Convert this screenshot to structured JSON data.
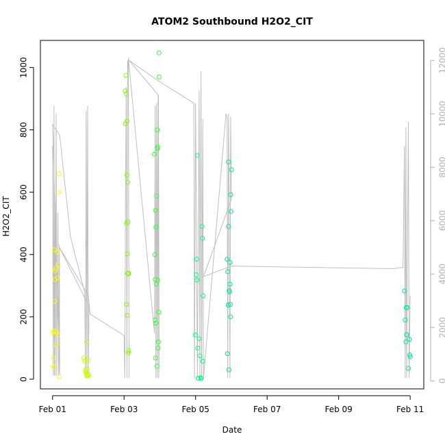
{
  "chart_data": {
    "type": "scatter",
    "title": "ATOM2 Southbound H2O2_CIT",
    "xlabel": "Date",
    "ylabel": "H2O2_CIT",
    "x_unit": "days",
    "x_ticks": [
      {
        "label": "Feb 01",
        "value": 0
      },
      {
        "label": "Feb 03",
        "value": 2
      },
      {
        "label": "Feb 05",
        "value": 4
      },
      {
        "label": "Feb 07",
        "value": 6
      },
      {
        "label": "Feb 09",
        "value": 8
      },
      {
        "label": "Feb 11",
        "value": 10
      }
    ],
    "xlim": [
      -0.34,
      10.38
    ],
    "ylim": [
      -31,
      1087
    ],
    "y_ticks": [
      0,
      200,
      400,
      600,
      800,
      1000
    ],
    "right_axis": {
      "ticks": [
        0,
        2000,
        4000,
        6000,
        8000,
        10000,
        12000
      ],
      "range": [
        -300,
        12750
      ],
      "color": "#b0b0b0"
    },
    "line_color": "#bebebe",
    "point_colors": [
      "#ffff00",
      "#ccff00",
      "#80ff00",
      "#33ff33",
      "#00ff80",
      "#00e6a0"
    ],
    "series": [
      {
        "values": [
          [
            0.0,
            150
          ],
          [
            0.02,
            42
          ],
          [
            0.03,
            68
          ],
          [
            0.04,
            38
          ],
          [
            0.05,
            155
          ],
          [
            0.05,
            415
          ],
          [
            0.06,
            250
          ],
          [
            0.07,
            320
          ],
          [
            0.08,
            348
          ],
          [
            0.09,
            355
          ],
          [
            0.1,
            110
          ],
          [
            0.12,
            150
          ],
          [
            0.13,
            408
          ],
          [
            0.14,
            325
          ],
          [
            0.15,
            143
          ],
          [
            0.16,
            368
          ],
          [
            0.17,
            600
          ],
          [
            0.18,
            660
          ],
          [
            0.19,
            8
          ]
        ]
      },
      {
        "values": [
          [
            0.88,
            68
          ],
          [
            0.9,
            58
          ],
          [
            0.92,
            30
          ],
          [
            0.93,
            25
          ],
          [
            0.94,
            15
          ],
          [
            0.95,
            120
          ],
          [
            0.96,
            32
          ],
          [
            0.97,
            12
          ],
          [
            0.98,
            10
          ],
          [
            0.99,
            18
          ],
          [
            1.0,
            62
          ],
          [
            1.01,
            12
          ]
        ]
      },
      {
        "values": [
          [
            2.03,
            925
          ],
          [
            2.04,
            820
          ],
          [
            2.05,
            975
          ],
          [
            2.06,
            915
          ],
          [
            2.07,
            240
          ],
          [
            2.07,
            500
          ],
          [
            2.08,
            655
          ],
          [
            2.08,
            828
          ],
          [
            2.09,
            402
          ],
          [
            2.09,
            205
          ],
          [
            2.1,
            632
          ],
          [
            2.1,
            340
          ],
          [
            2.11,
            505
          ],
          [
            2.12,
            338
          ],
          [
            2.12,
            85
          ],
          [
            2.13,
            92
          ],
          [
            2.13,
            340
          ]
        ]
      },
      {
        "values": [
          [
            2.85,
            722
          ],
          [
            2.86,
            400
          ],
          [
            2.87,
            190
          ],
          [
            2.87,
            320
          ],
          [
            2.88,
            542
          ],
          [
            2.88,
            68
          ],
          [
            2.89,
            488
          ],
          [
            2.89,
            180
          ],
          [
            2.9,
            305
          ],
          [
            2.91,
            588
          ],
          [
            2.92,
            42
          ],
          [
            2.93,
            800
          ],
          [
            2.93,
            740
          ],
          [
            2.94,
            745
          ],
          [
            2.94,
            318
          ],
          [
            2.95,
            100
          ],
          [
            2.96,
            120
          ],
          [
            2.97,
            215
          ],
          [
            2.98,
            1047
          ],
          [
            2.98,
            970
          ]
        ]
      },
      {
        "values": [
          [
            3.99,
            142
          ],
          [
            4.02,
            335
          ],
          [
            4.03,
            385
          ],
          [
            4.04,
            318
          ],
          [
            4.05,
            718
          ],
          [
            4.06,
            100
          ],
          [
            4.07,
            3
          ],
          [
            4.1,
            130
          ],
          [
            4.12,
            75
          ],
          [
            4.14,
            5
          ],
          [
            4.15,
            2
          ],
          [
            4.18,
            490
          ],
          [
            4.19,
            452
          ],
          [
            4.2,
            58
          ],
          [
            4.21,
            268
          ]
        ]
      },
      {
        "values": [
          [
            4.88,
            385
          ],
          [
            4.89,
            82
          ],
          [
            4.9,
            345
          ],
          [
            4.91,
            238
          ],
          [
            4.92,
            490
          ],
          [
            4.92,
            697
          ],
          [
            4.93,
            30
          ],
          [
            4.94,
            285
          ],
          [
            4.95,
            280
          ],
          [
            4.96,
            305
          ],
          [
            4.96,
            375
          ],
          [
            4.97,
            240
          ],
          [
            4.98,
            200
          ],
          [
            4.98,
            592
          ],
          [
            4.99,
            538
          ],
          [
            5.0,
            672
          ]
        ]
      },
      {
        "values": [
          [
            9.84,
            283
          ],
          [
            9.86,
            190
          ],
          [
            9.88,
            120
          ],
          [
            9.89,
            230
          ],
          [
            9.9,
            143
          ],
          [
            9.91,
            143
          ],
          [
            9.92,
            230
          ],
          [
            9.95,
            35
          ],
          [
            9.98,
            128
          ],
          [
            9.99,
            78
          ],
          [
            10.0,
            72
          ]
        ]
      }
    ],
    "secondary_trace": [
      [
        0.0,
        8800
      ],
      [
        0.02,
        200
      ],
      [
        0.04,
        10300
      ],
      [
        0.05,
        200
      ],
      [
        0.07,
        6200
      ],
      [
        0.08,
        200
      ],
      [
        0.1,
        10000
      ],
      [
        0.12,
        200
      ],
      [
        0.15,
        6300
      ],
      [
        0.17,
        200
      ],
      [
        0.19,
        5100
      ],
      [
        0.2,
        200
      ],
      [
        0.0,
        9600
      ],
      [
        0.2,
        9200
      ],
      [
        0.5,
        5400
      ],
      [
        0.9,
        3300
      ],
      [
        0.92,
        100
      ],
      [
        0.94,
        10100
      ],
      [
        0.96,
        100
      ],
      [
        0.98,
        10300
      ],
      [
        1.0,
        100
      ],
      [
        1.02,
        2800
      ],
      [
        0.19,
        5000
      ],
      [
        1.0,
        3200
      ],
      [
        1.05,
        2500
      ],
      [
        2.0,
        1700
      ],
      [
        2.02,
        100
      ],
      [
        2.04,
        7000
      ],
      [
        2.06,
        11000
      ],
      [
        2.08,
        100
      ],
      [
        2.1,
        12000
      ],
      [
        2.12,
        11500
      ],
      [
        2.14,
        100
      ],
      [
        2.12,
        12100
      ],
      [
        2.85,
        1800
      ],
      [
        2.87,
        10300
      ],
      [
        2.89,
        100
      ],
      [
        2.91,
        10400
      ],
      [
        2.93,
        100
      ],
      [
        2.95,
        10700
      ],
      [
        2.97,
        100
      ],
      [
        2.98,
        1100
      ],
      [
        2.96,
        10700
      ],
      [
        2.14,
        12000
      ],
      [
        3.0,
        11200
      ],
      [
        3.95,
        10400
      ],
      [
        3.97,
        100
      ],
      [
        4.0,
        10400
      ],
      [
        4.05,
        100
      ],
      [
        4.1,
        10900
      ],
      [
        4.12,
        100
      ],
      [
        4.15,
        11600
      ],
      [
        4.17,
        100
      ],
      [
        4.2,
        9800
      ],
      [
        4.22,
        100
      ],
      [
        4.85,
        10000
      ],
      [
        4.88,
        9900
      ],
      [
        4.9,
        100
      ],
      [
        4.92,
        10000
      ],
      [
        4.94,
        6900
      ],
      [
        4.96,
        100
      ],
      [
        4.98,
        9900
      ],
      [
        5.0,
        6800
      ],
      [
        4.22,
        3900
      ],
      [
        5.0,
        4300
      ],
      [
        9.5,
        4200
      ],
      [
        9.8,
        4250
      ],
      [
        9.84,
        8800
      ],
      [
        9.86,
        100
      ],
      [
        9.88,
        9500
      ],
      [
        9.9,
        100
      ],
      [
        9.95,
        9700
      ],
      [
        9.97,
        100
      ],
      [
        10.0,
        3200
      ]
    ]
  }
}
